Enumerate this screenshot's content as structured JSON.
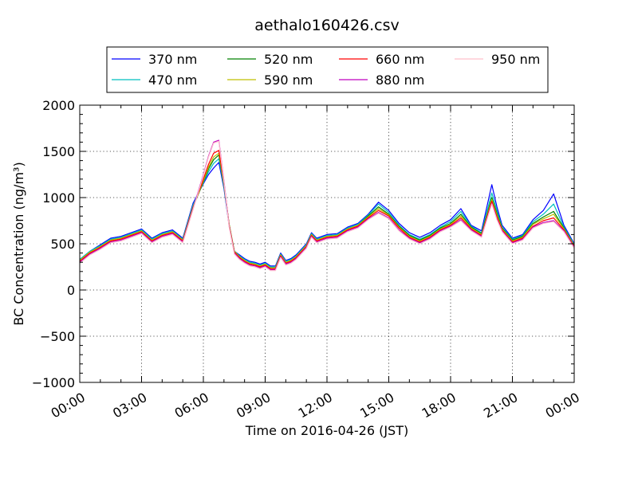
{
  "chart_data": {
    "type": "line",
    "title": "aethalo160426.csv",
    "xlabel": "Time on 2016-04-26 (JST)",
    "ylabel": "BC Concentration (ng/m³)",
    "xlim": [
      "2016-04-26 00:00",
      "2016-04-27 00:00"
    ],
    "ylim": [
      -1000,
      2000
    ],
    "xticks": [
      "00:00",
      "03:00",
      "06:00",
      "09:00",
      "12:00",
      "15:00",
      "18:00",
      "21:00",
      "00:00"
    ],
    "xtick_hours": [
      0,
      3,
      6,
      9,
      12,
      15,
      18,
      21,
      24
    ],
    "yticks": [
      -1000,
      -500,
      0,
      500,
      1000,
      1500,
      2000
    ],
    "ytick_labels": [
      "−1000",
      "−500",
      "0",
      "500",
      "1000",
      "1500",
      "2000"
    ],
    "grid": true,
    "legend_position": "top-center",
    "x_hours": [
      0,
      0.5,
      1,
      1.5,
      2,
      2.5,
      3,
      3.5,
      4,
      4.5,
      5,
      5.5,
      6,
      6.25,
      6.5,
      6.75,
      7,
      7.25,
      7.5,
      7.75,
      8,
      8.25,
      8.5,
      8.75,
      9,
      9.25,
      9.5,
      9.75,
      10,
      10.25,
      10.5,
      10.75,
      11,
      11.25,
      11.5,
      11.75,
      12,
      12.5,
      13,
      13.5,
      14,
      14.5,
      15,
      15.5,
      16,
      16.5,
      17,
      17.5,
      18,
      18.5,
      19,
      19.5,
      20,
      20.25,
      20.5,
      21,
      21.5,
      22,
      22.5,
      23,
      23.5,
      24
    ],
    "series": [
      {
        "name": "370 nm",
        "color": "#0000ff",
        "values": [
          330,
          420,
          490,
          560,
          580,
          620,
          660,
          560,
          620,
          650,
          560,
          940,
          1150,
          1250,
          1320,
          1380,
          1100,
          700,
          420,
          380,
          340,
          310,
          300,
          280,
          300,
          260,
          260,
          400,
          320,
          340,
          380,
          440,
          500,
          620,
          560,
          580,
          600,
          610,
          680,
          720,
          820,
          950,
          860,
          720,
          620,
          570,
          620,
          700,
          760,
          880,
          700,
          640,
          1140,
          900,
          700,
          560,
          600,
          760,
          860,
          1040,
          700,
          500
        ]
      },
      {
        "name": "470 nm",
        "color": "#00bfbf",
        "values": [
          330,
          420,
          480,
          550,
          570,
          610,
          650,
          550,
          610,
          640,
          550,
          920,
          1160,
          1280,
          1370,
          1420,
          1120,
          710,
          420,
          370,
          330,
          300,
          290,
          270,
          290,
          250,
          250,
          390,
          310,
          330,
          370,
          430,
          490,
          610,
          550,
          570,
          590,
          600,
          670,
          710,
          810,
          930,
          840,
          700,
          600,
          550,
          600,
          680,
          740,
          850,
          690,
          620,
          1050,
          860,
          680,
          550,
          590,
          740,
          820,
          930,
          680,
          490
        ]
      },
      {
        "name": "520 nm",
        "color": "#008000",
        "values": [
          320,
          410,
          470,
          540,
          560,
          600,
          640,
          540,
          600,
          630,
          540,
          900,
          1170,
          1310,
          1410,
          1460,
          1140,
          710,
          420,
          360,
          320,
          290,
          280,
          260,
          280,
          240,
          240,
          380,
          300,
          320,
          360,
          420,
          480,
          600,
          540,
          560,
          580,
          590,
          660,
          700,
          800,
          900,
          820,
          690,
          590,
          540,
          590,
          670,
          720,
          820,
          680,
          610,
          1000,
          830,
          670,
          540,
          580,
          720,
          790,
          850,
          670,
          480
        ]
      },
      {
        "name": "590 nm",
        "color": "#bfbf00",
        "values": [
          320,
          410,
          470,
          540,
          560,
          600,
          640,
          540,
          600,
          630,
          540,
          900,
          1180,
          1330,
          1440,
          1480,
          1150,
          710,
          420,
          360,
          320,
          290,
          280,
          260,
          280,
          240,
          240,
          380,
          300,
          320,
          360,
          420,
          480,
          600,
          540,
          560,
          580,
          590,
          660,
          700,
          790,
          880,
          810,
          680,
          580,
          530,
          580,
          660,
          710,
          800,
          670,
          600,
          980,
          810,
          660,
          530,
          570,
          710,
          770,
          820,
          660,
          480
        ]
      },
      {
        "name": "660 nm",
        "color": "#ff0000",
        "values": [
          310,
          400,
          460,
          530,
          550,
          590,
          630,
          530,
          590,
          620,
          530,
          890,
          1200,
          1360,
          1480,
          1510,
          1160,
          700,
          410,
          350,
          310,
          280,
          270,
          250,
          270,
          230,
          230,
          370,
          290,
          310,
          350,
          410,
          470,
          590,
          530,
          550,
          570,
          580,
          650,
          690,
          780,
          860,
          800,
          670,
          570,
          520,
          570,
          650,
          700,
          780,
          660,
          590,
          960,
          790,
          650,
          520,
          560,
          690,
          750,
          780,
          650,
          470
        ]
      },
      {
        "name": "880 nm",
        "color": "#bf00bf",
        "values": [
          300,
          390,
          450,
          520,
          540,
          580,
          620,
          520,
          580,
          610,
          520,
          880,
          1250,
          1450,
          1600,
          1620,
          1180,
          690,
          400,
          340,
          300,
          270,
          260,
          240,
          260,
          220,
          220,
          360,
          280,
          300,
          340,
          400,
          460,
          580,
          520,
          540,
          560,
          570,
          640,
          680,
          770,
          840,
          780,
          650,
          560,
          510,
          560,
          640,
          690,
          760,
          650,
          580,
          940,
          770,
          640,
          510,
          550,
          680,
          730,
          750,
          640,
          460
        ]
      },
      {
        "name": "950 nm",
        "color": "#ffc0cb",
        "values": [
          290,
          380,
          440,
          510,
          530,
          570,
          610,
          510,
          570,
          600,
          510,
          870,
          1240,
          1440,
          1590,
          1610,
          1170,
          680,
          390,
          330,
          290,
          260,
          250,
          230,
          250,
          210,
          210,
          350,
          270,
          290,
          330,
          390,
          450,
          570,
          510,
          530,
          550,
          560,
          630,
          670,
          760,
          830,
          770,
          640,
          550,
          500,
          550,
          630,
          680,
          750,
          640,
          570,
          930,
          760,
          630,
          500,
          540,
          670,
          720,
          740,
          630,
          450
        ]
      }
    ]
  }
}
